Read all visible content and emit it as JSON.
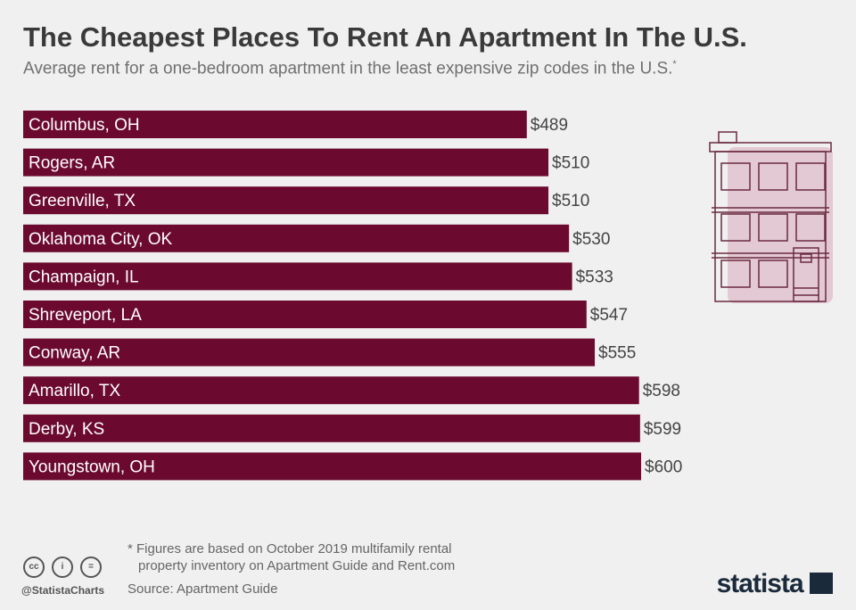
{
  "chart_data": {
    "type": "bar",
    "orientation": "horizontal",
    "title": "The Cheapest Places To Rent An Apartment In The U.S.",
    "subtitle": "Average rent for a one-bedroom apartment in the least expensive zip codes in the U.S.",
    "subtitle_mark": "*",
    "categories": [
      "Columbus, OH",
      "Rogers, AR",
      "Greenville, TX",
      "Oklahoma City, OK",
      "Champaign, IL",
      "Shreveport, LA",
      "Conway, AR",
      "Amarillo, TX",
      "Derby, KS",
      "Youngstown, OH"
    ],
    "values": [
      489,
      510,
      510,
      530,
      533,
      547,
      555,
      598,
      599,
      600
    ],
    "labels": [
      "$489",
      "$510",
      "$510",
      "$530",
      "$533",
      "$547",
      "$555",
      "$598",
      "$599",
      "$600"
    ],
    "xlim": [
      0,
      600
    ],
    "grid": false,
    "bar_color": "#6b0a2e"
  },
  "footer": {
    "note_line1": "* Figures are based on October 2019 multifamily rental",
    "note_line2": "property inventory on Apartment Guide and Rent.com",
    "source": "Source: Apartment Guide",
    "handle": "@StatistaCharts",
    "brand": "statista"
  },
  "icons": [
    "building-illustration",
    "cc-icon",
    "by-icon",
    "nd-icon",
    "statista-logo"
  ]
}
